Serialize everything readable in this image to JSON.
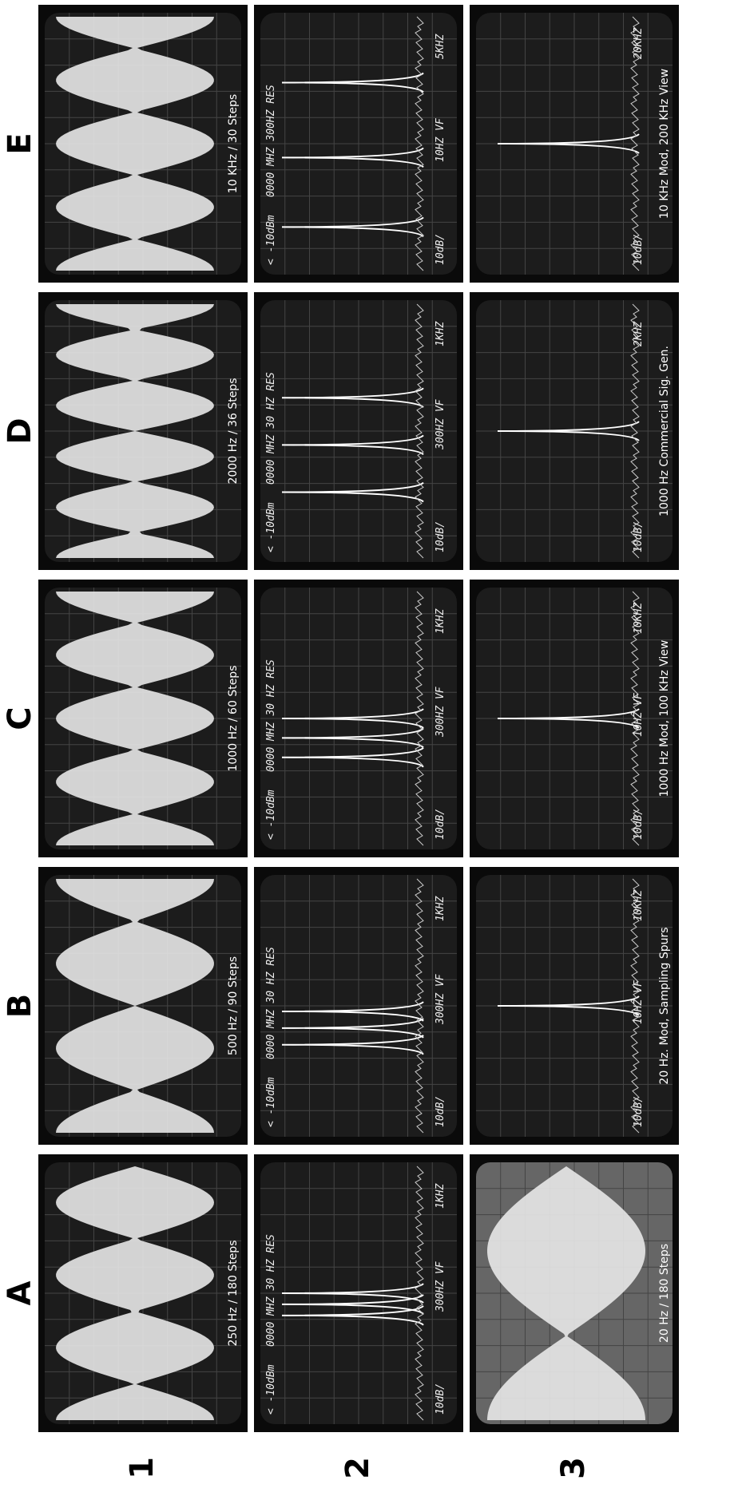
{
  "column_labels": [
    "A",
    "B",
    "C",
    "D",
    "E"
  ],
  "row_labels": [
    "1",
    "2",
    "3"
  ],
  "rows": [
    {
      "panels": [
        {
          "caption": "250 Hz / 180 Steps"
        },
        {
          "caption": "500 Hz / 90 Steps"
        },
        {
          "caption": "1000 Hz / 60 Steps"
        },
        {
          "caption": "2000 Hz / 36 Steps"
        },
        {
          "caption": "10 KHz / 30 Steps"
        }
      ]
    },
    {
      "panels": [
        {
          "screen_top": [
            "< -10dBm",
            "0000 MHZ 30 HZ RES"
          ],
          "screen_bottom": [
            "10dB/",
            "300HZ VF",
            "1KHZ"
          ]
        },
        {
          "screen_top": [
            "< -10dBm",
            "0000 MHZ 30 HZ RES"
          ],
          "screen_bottom": [
            "10dB/",
            "300HZ VF",
            "1KHZ"
          ]
        },
        {
          "screen_top": [
            "< -10dBm",
            "0000 MHZ 30 HZ RES"
          ],
          "screen_bottom": [
            "10dB/",
            "300HZ VF",
            "1KHZ"
          ]
        },
        {
          "screen_top": [
            "< -10dBm",
            "0000 MHZ 30 HZ RES"
          ],
          "screen_bottom": [
            "10dB/",
            "300HZ VF",
            "1KHZ"
          ]
        },
        {
          "screen_top": [
            "< -10dBm",
            "0000 MHZ 300HZ RES"
          ],
          "screen_bottom": [
            "10dB/",
            "10HZ VF",
            "5KHZ"
          ]
        }
      ]
    },
    {
      "panels": [
        {
          "caption": "20 Hz / 180 Steps"
        },
        {
          "caption": "20 Hz. Mod, Sampling Spurs",
          "screen_bottom": [
            "10dB/",
            "10HZ VF",
            "10KHZ"
          ]
        },
        {
          "caption": "1000 Hz Mod, 100 KHz View",
          "screen_bottom": [
            "10dB/",
            "10HZ VF",
            "10KHZ"
          ]
        },
        {
          "caption": "1000 Hz Commercial Sig. Gen.",
          "screen_bottom": [
            "10dB/",
            "2KHZ"
          ]
        },
        {
          "caption": "10 KHz Mod, 200 KHz View",
          "screen_bottom": [
            "10dB/",
            "20KHZ"
          ]
        }
      ]
    }
  ]
}
